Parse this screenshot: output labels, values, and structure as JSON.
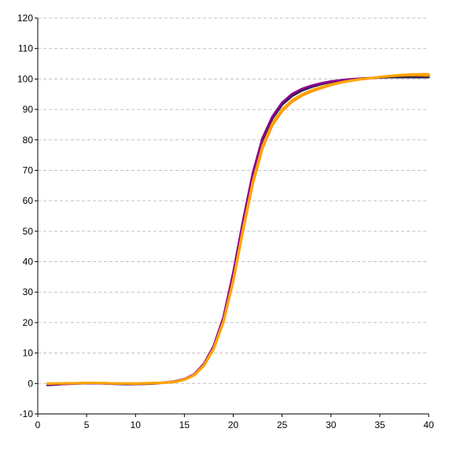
{
  "chart_data": {
    "type": "line",
    "title": "",
    "xlabel": "",
    "ylabel": "",
    "xlim": [
      0,
      40
    ],
    "ylim": [
      -10,
      120
    ],
    "x_ticks": [
      0,
      5,
      10,
      15,
      20,
      25,
      30,
      35,
      40
    ],
    "y_ticks": [
      -10,
      0,
      10,
      20,
      30,
      40,
      50,
      60,
      70,
      80,
      90,
      100,
      110,
      120
    ],
    "x_tick_labels": [
      "0",
      "5",
      "10",
      "15",
      "20",
      "25",
      "30",
      "35",
      "40"
    ],
    "y_tick_labels": [
      "-10",
      "0",
      "10",
      "20",
      "30",
      "40",
      "50",
      "60",
      "70",
      "80",
      "90",
      "100",
      "110",
      "120"
    ],
    "grid": {
      "horizontal": true,
      "vertical": false,
      "style": "dashed",
      "color": "#c0c0c0"
    },
    "legend": "none",
    "x": [
      1,
      2,
      3,
      4,
      5,
      6,
      7,
      8,
      9,
      10,
      11,
      12,
      13,
      14,
      15,
      16,
      17,
      18,
      19,
      20,
      21,
      22,
      23,
      24,
      25,
      26,
      27,
      28,
      29,
      30,
      31,
      32,
      33,
      34,
      35,
      36,
      37,
      38,
      39,
      40
    ],
    "series": [
      {
        "color": "#1a1a4a",
        "values": [
          -0.5,
          -0.3,
          -0.1,
          0.0,
          0.1,
          0.1,
          0.0,
          -0.1,
          -0.2,
          -0.2,
          -0.1,
          0.0,
          0.3,
          0.6,
          1.3,
          2.9,
          6.2,
          12.0,
          21.4,
          36.0,
          53.0,
          68.5,
          80.0,
          87.0,
          91.6,
          94.4,
          96.2,
          97.4,
          98.3,
          99.0,
          99.5,
          99.8,
          100.1,
          100.3,
          100.5,
          100.6,
          100.6,
          100.6,
          100.6,
          100.6
        ]
      },
      {
        "color": "#8b008b",
        "values": [
          -0.3,
          -0.2,
          -0.1,
          0.0,
          0.1,
          0.1,
          0.0,
          -0.1,
          -0.1,
          -0.1,
          0.0,
          0.1,
          0.3,
          0.7,
          1.4,
          3.0,
          6.4,
          12.3,
          21.7,
          36.3,
          53.3,
          69.0,
          80.6,
          87.6,
          92.2,
          95.0,
          96.7,
          97.8,
          98.6,
          99.2,
          99.6,
          99.9,
          100.1,
          100.3,
          100.6,
          100.9,
          101.1,
          101.2,
          101.3,
          101.3
        ]
      },
      {
        "color": "#ff8c00",
        "values": [
          -0.1,
          0.0,
          0.0,
          0.1,
          0.2,
          0.2,
          0.1,
          0.0,
          0.0,
          -0.1,
          0.0,
          0.1,
          0.2,
          0.5,
          1.2,
          2.7,
          5.8,
          11.3,
          20.1,
          33.5,
          50.1,
          65.5,
          77.3,
          84.8,
          89.5,
          92.5,
          94.5,
          95.9,
          97.0,
          98.0,
          98.8,
          99.4,
          99.9,
          100.2,
          100.6,
          100.9,
          101.1,
          101.2,
          101.2,
          101.1
        ]
      },
      {
        "color": "#ffa500",
        "values": [
          0.0,
          0.0,
          0.1,
          0.1,
          0.2,
          0.2,
          0.1,
          0.0,
          0.0,
          0.0,
          0.1,
          0.2,
          0.3,
          0.6,
          1.3,
          2.8,
          6.0,
          11.6,
          20.5,
          34.0,
          50.8,
          66.3,
          78.0,
          85.4,
          90.0,
          93.0,
          94.9,
          96.3,
          97.3,
          98.2,
          98.9,
          99.5,
          99.9,
          100.3,
          100.7,
          101.0,
          101.3,
          101.5,
          101.6,
          101.6
        ]
      }
    ]
  }
}
